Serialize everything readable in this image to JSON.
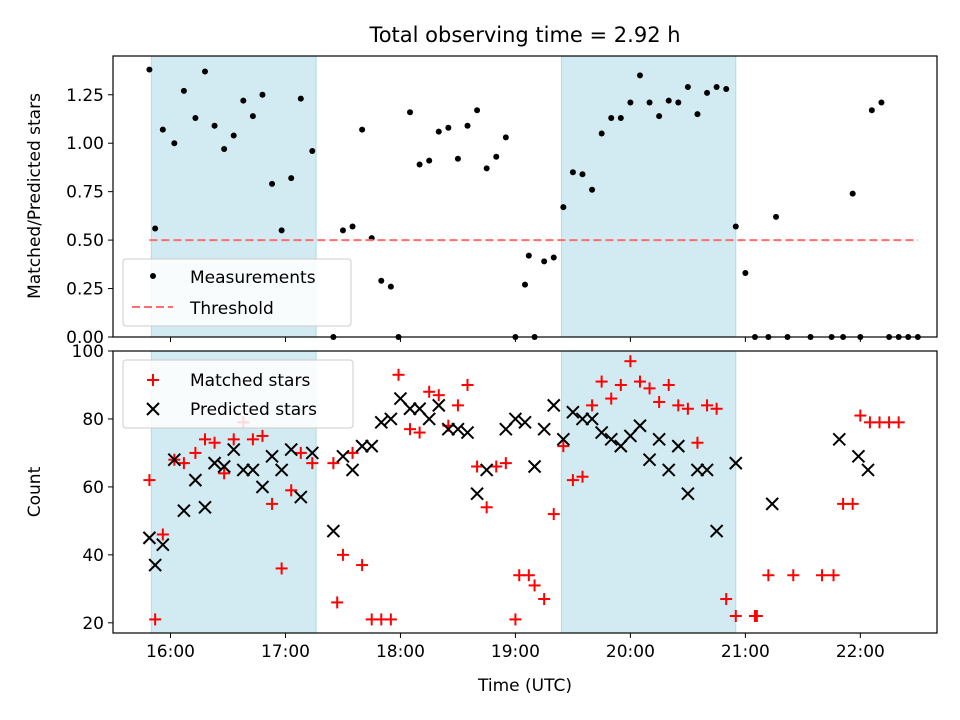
{
  "chart_data": [
    {
      "type": "scatter",
      "title": "Total observing time = 2.92 h",
      "xlabel": "",
      "ylabel": "Matched/Predicted stars",
      "xlim": [
        "15:30",
        "22:40"
      ],
      "ylim": [
        0,
        1.45
      ],
      "yticks": [
        "0.00",
        "0.25",
        "0.50",
        "0.75",
        "1.00",
        "1.25"
      ],
      "xticks": [
        "16:00",
        "17:00",
        "18:00",
        "19:00",
        "20:00",
        "21:00",
        "22:00"
      ],
      "show_xticklabels": false,
      "shaded_intervals": [
        [
          "15:50",
          "17:16"
        ],
        [
          "19:24",
          "20:55"
        ]
      ],
      "shade_color": "#add8e6",
      "legend": {
        "placement": "lower-left",
        "entries": [
          "Measurements",
          "Threshold"
        ]
      },
      "series": [
        {
          "name": "Measurements",
          "marker": "dot",
          "color": "#000000",
          "points": [
            [
              "15:49",
              1.38
            ],
            [
              "15:52",
              0.56
            ],
            [
              "15:56",
              1.07
            ],
            [
              "16:02",
              1.0
            ],
            [
              "16:07",
              1.27
            ],
            [
              "16:13",
              1.13
            ],
            [
              "16:18",
              1.37
            ],
            [
              "16:23",
              1.09
            ],
            [
              "16:28",
              0.97
            ],
            [
              "16:33",
              1.04
            ],
            [
              "16:38",
              1.22
            ],
            [
              "16:43",
              1.14
            ],
            [
              "16:48",
              1.25
            ],
            [
              "16:53",
              0.79
            ],
            [
              "16:58",
              0.55
            ],
            [
              "17:03",
              0.82
            ],
            [
              "17:08",
              1.23
            ],
            [
              "17:14",
              0.96
            ],
            [
              "17:25",
              0.0
            ],
            [
              "17:30",
              0.55
            ],
            [
              "17:35",
              0.57
            ],
            [
              "17:40",
              1.07
            ],
            [
              "17:45",
              0.51
            ],
            [
              "17:50",
              0.29
            ],
            [
              "17:55",
              0.26
            ],
            [
              "17:59",
              0.0
            ],
            [
              "18:05",
              1.16
            ],
            [
              "18:10",
              0.89
            ],
            [
              "18:15",
              0.91
            ],
            [
              "18:20",
              1.06
            ],
            [
              "18:25",
              1.08
            ],
            [
              "18:30",
              0.92
            ],
            [
              "18:35",
              1.09
            ],
            [
              "18:40",
              1.17
            ],
            [
              "18:45",
              0.87
            ],
            [
              "18:50",
              0.93
            ],
            [
              "18:55",
              1.03
            ],
            [
              "19:00",
              0.0
            ],
            [
              "19:05",
              0.27
            ],
            [
              "19:07",
              0.42
            ],
            [
              "19:10",
              0.0
            ],
            [
              "19:15",
              0.39
            ],
            [
              "19:20",
              0.41
            ],
            [
              "19:25",
              0.67
            ],
            [
              "19:30",
              0.85
            ],
            [
              "19:35",
              0.84
            ],
            [
              "19:40",
              0.76
            ],
            [
              "19:45",
              1.05
            ],
            [
              "19:50",
              1.13
            ],
            [
              "19:55",
              1.13
            ],
            [
              "20:00",
              1.21
            ],
            [
              "20:05",
              1.35
            ],
            [
              "20:10",
              1.21
            ],
            [
              "20:15",
              1.14
            ],
            [
              "20:20",
              1.22
            ],
            [
              "20:25",
              1.21
            ],
            [
              "20:30",
              1.29
            ],
            [
              "20:35",
              1.15
            ],
            [
              "20:40",
              1.26
            ],
            [
              "20:45",
              1.29
            ],
            [
              "20:50",
              1.28
            ],
            [
              "20:55",
              0.57
            ],
            [
              "21:00",
              0.33
            ],
            [
              "21:05",
              0.0
            ],
            [
              "21:12",
              0.0
            ],
            [
              "21:16",
              0.62
            ],
            [
              "21:22",
              0.0
            ],
            [
              "21:34",
              0.0
            ],
            [
              "21:45",
              0.0
            ],
            [
              "21:51",
              0.0
            ],
            [
              "21:56",
              0.74
            ],
            [
              "22:00",
              0.0
            ],
            [
              "22:06",
              1.17
            ],
            [
              "22:11",
              1.21
            ],
            [
              "22:15",
              0.0
            ],
            [
              "22:20",
              0.0
            ],
            [
              "22:25",
              0.0
            ],
            [
              "22:30",
              0.0
            ]
          ]
        },
        {
          "name": "Threshold",
          "style": "dashed",
          "color": "#ff6f6f",
          "points": [
            [
              "15:49",
              0.5
            ],
            [
              "22:30",
              0.5
            ]
          ]
        }
      ]
    },
    {
      "type": "scatter",
      "title": "",
      "xlabel": "Time (UTC)",
      "ylabel": "Count",
      "xlim": [
        "15:30",
        "22:40"
      ],
      "ylim": [
        17,
        100
      ],
      "yticks": [
        "20",
        "40",
        "60",
        "80",
        "100"
      ],
      "xticks": [
        "16:00",
        "17:00",
        "18:00",
        "19:00",
        "20:00",
        "21:00",
        "22:00"
      ],
      "show_xticklabels": true,
      "shaded_intervals": [
        [
          "15:50",
          "17:16"
        ],
        [
          "19:24",
          "20:55"
        ]
      ],
      "shade_color": "#add8e6",
      "legend": {
        "placement": "upper-left",
        "entries": [
          "Matched stars",
          "Predicted stars"
        ]
      },
      "series": [
        {
          "name": "Matched stars",
          "marker": "plus",
          "color": "#ff0000",
          "points": [
            [
              "15:49",
              62
            ],
            [
              "15:52",
              21
            ],
            [
              "15:56",
              46
            ],
            [
              "16:02",
              68
            ],
            [
              "16:07",
              67
            ],
            [
              "16:13",
              70
            ],
            [
              "16:18",
              74
            ],
            [
              "16:23",
              73
            ],
            [
              "16:28",
              64
            ],
            [
              "16:33",
              74
            ],
            [
              "16:38",
              79
            ],
            [
              "16:43",
              74
            ],
            [
              "16:48",
              75
            ],
            [
              "16:53",
              55
            ],
            [
              "16:58",
              36
            ],
            [
              "17:03",
              59
            ],
            [
              "17:08",
              70
            ],
            [
              "17:14",
              67
            ],
            [
              "17:25",
              67
            ],
            [
              "17:27",
              26
            ],
            [
              "17:30",
              40
            ],
            [
              "17:35",
              70
            ],
            [
              "17:40",
              37
            ],
            [
              "17:45",
              21
            ],
            [
              "17:50",
              21
            ],
            [
              "17:55",
              21
            ],
            [
              "17:59",
              93
            ],
            [
              "18:05",
              77
            ],
            [
              "18:10",
              76
            ],
            [
              "18:15",
              88
            ],
            [
              "18:20",
              87
            ],
            [
              "18:25",
              78
            ],
            [
              "18:30",
              84
            ],
            [
              "18:35",
              90
            ],
            [
              "18:40",
              66
            ],
            [
              "18:45",
              54
            ],
            [
              "18:50",
              66
            ],
            [
              "18:55",
              67
            ],
            [
              "19:00",
              21
            ],
            [
              "19:02",
              34
            ],
            [
              "19:07",
              34
            ],
            [
              "19:10",
              31
            ],
            [
              "19:15",
              27
            ],
            [
              "19:20",
              52
            ],
            [
              "19:25",
              72
            ],
            [
              "19:30",
              62
            ],
            [
              "19:35",
              63
            ],
            [
              "19:40",
              84
            ],
            [
              "19:45",
              91
            ],
            [
              "19:50",
              86
            ],
            [
              "19:55",
              90
            ],
            [
              "20:00",
              97
            ],
            [
              "20:05",
              91
            ],
            [
              "20:10",
              89
            ],
            [
              "20:15",
              85
            ],
            [
              "20:20",
              90
            ],
            [
              "20:25",
              84
            ],
            [
              "20:30",
              83
            ],
            [
              "20:35",
              73
            ],
            [
              "20:40",
              84
            ],
            [
              "20:45",
              83
            ],
            [
              "20:50",
              27
            ],
            [
              "20:55",
              22
            ],
            [
              "21:05",
              22
            ],
            [
              "21:06",
              22
            ],
            [
              "21:12",
              34
            ],
            [
              "21:25",
              34
            ],
            [
              "21:40",
              34
            ],
            [
              "21:46",
              34
            ],
            [
              "21:51",
              55
            ],
            [
              "21:56",
              55
            ],
            [
              "22:00",
              81
            ],
            [
              "22:05",
              79
            ],
            [
              "22:10",
              79
            ],
            [
              "22:15",
              79
            ],
            [
              "22:20",
              79
            ]
          ]
        },
        {
          "name": "Predicted stars",
          "marker": "x",
          "color": "#000000",
          "points": [
            [
              "15:49",
              45
            ],
            [
              "15:52",
              37
            ],
            [
              "15:56",
              43
            ],
            [
              "16:02",
              68
            ],
            [
              "16:07",
              53
            ],
            [
              "16:13",
              62
            ],
            [
              "16:18",
              54
            ],
            [
              "16:23",
              67
            ],
            [
              "16:28",
              66
            ],
            [
              "16:33",
              71
            ],
            [
              "16:38",
              65
            ],
            [
              "16:43",
              65
            ],
            [
              "16:48",
              60
            ],
            [
              "16:53",
              69
            ],
            [
              "16:58",
              65
            ],
            [
              "17:03",
              71
            ],
            [
              "17:08",
              57
            ],
            [
              "17:14",
              70
            ],
            [
              "17:25",
              47
            ],
            [
              "17:30",
              69
            ],
            [
              "17:35",
              65
            ],
            [
              "17:40",
              72
            ],
            [
              "17:45",
              72
            ],
            [
              "17:50",
              79
            ],
            [
              "17:55",
              80
            ],
            [
              "18:00",
              86
            ],
            [
              "18:05",
              83
            ],
            [
              "18:10",
              83
            ],
            [
              "18:15",
              80
            ],
            [
              "18:20",
              84
            ],
            [
              "18:25",
              77
            ],
            [
              "18:30",
              77
            ],
            [
              "18:35",
              76
            ],
            [
              "18:40",
              58
            ],
            [
              "18:45",
              65
            ],
            [
              "18:55",
              77
            ],
            [
              "19:00",
              80
            ],
            [
              "19:05",
              79
            ],
            [
              "19:10",
              66
            ],
            [
              "19:15",
              77
            ],
            [
              "19:20",
              84
            ],
            [
              "19:25",
              74
            ],
            [
              "19:30",
              82
            ],
            [
              "19:35",
              80
            ],
            [
              "19:40",
              80
            ],
            [
              "19:45",
              76
            ],
            [
              "19:50",
              74
            ],
            [
              "19:55",
              72
            ],
            [
              "20:00",
              75
            ],
            [
              "20:05",
              78
            ],
            [
              "20:10",
              68
            ],
            [
              "20:15",
              74
            ],
            [
              "20:20",
              65
            ],
            [
              "20:25",
              72
            ],
            [
              "20:30",
              58
            ],
            [
              "20:35",
              65
            ],
            [
              "20:40",
              65
            ],
            [
              "20:45",
              47
            ],
            [
              "20:55",
              67
            ],
            [
              "21:14",
              55
            ],
            [
              "21:49",
              74
            ],
            [
              "21:59",
              69
            ],
            [
              "22:04",
              65
            ]
          ]
        }
      ]
    }
  ]
}
